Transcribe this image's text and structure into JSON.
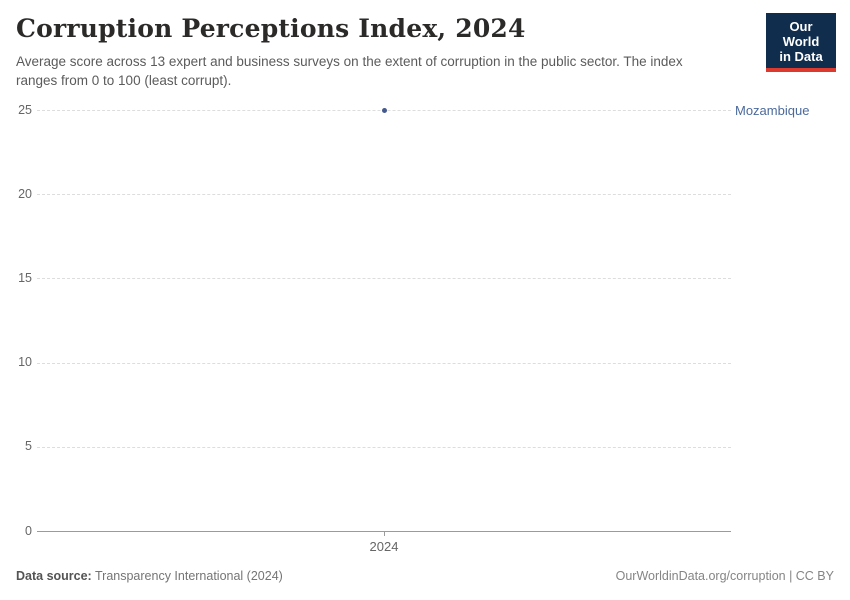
{
  "header": {
    "title": "Corruption Perceptions Index, 2024",
    "subtitle": "Average score across 13 expert and business surveys on the extent of corruption in the public sector. The index ranges from 0 to 100 (least corrupt).",
    "logo_line1": "Our World",
    "logo_line2": "in Data"
  },
  "chart_data": {
    "type": "scatter",
    "title": "Corruption Perceptions Index, 2024",
    "x": [
      2024
    ],
    "x_tick_labels": [
      "2024"
    ],
    "y_ticks": [
      0,
      5,
      10,
      15,
      20,
      25
    ],
    "ylim": [
      0,
      25
    ],
    "grid": "horizontal-dashed",
    "legend_position": "right-of-point",
    "series": [
      {
        "name": "Mozambique",
        "x": [
          2024
        ],
        "values": [
          25
        ]
      }
    ]
  },
  "colors": {
    "point": "#44598C",
    "entity_label": "#4C6A9C",
    "grid": "#DDDDDD",
    "axis": "#9B9B9B",
    "tick_text": "#666666",
    "logo_bg": "#102D4E",
    "logo_stripe": "#DC3A2F"
  },
  "footer": {
    "source_label": "Data source:",
    "source_value": "Transparency International (2024)",
    "rights": "OurWorldinData.org/corruption | CC BY"
  }
}
